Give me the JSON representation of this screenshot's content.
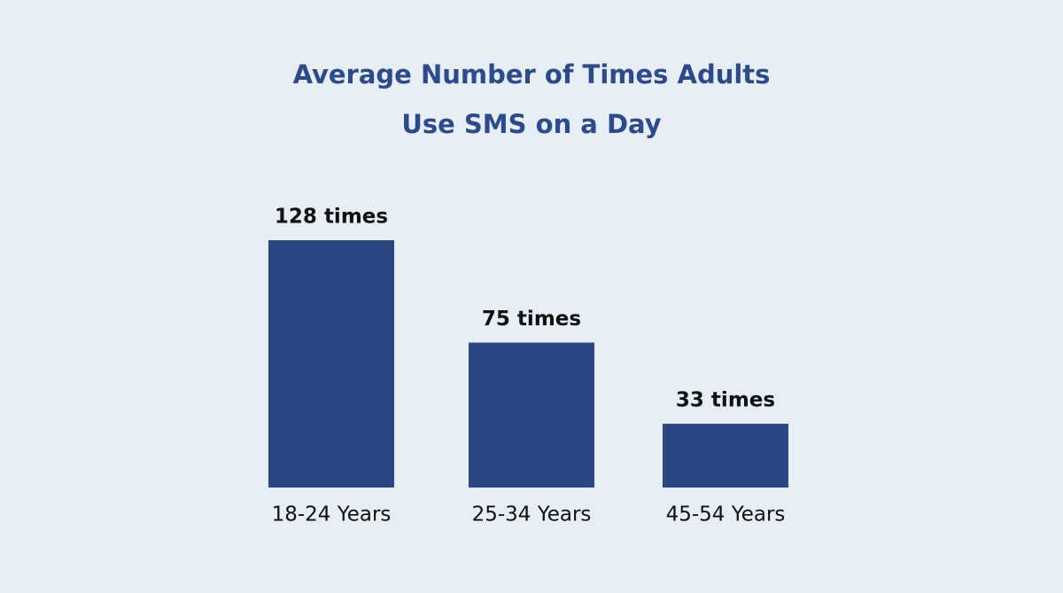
{
  "chart_data": {
    "type": "bar",
    "title": [
      "Average Number of Times Adults",
      "Use SMS on a Day"
    ],
    "categories": [
      "18-24 Years",
      "25-34 Years",
      "45-54 Years"
    ],
    "values": [
      128,
      75,
      33
    ],
    "value_labels": [
      "128 times",
      "75 times",
      "33 times"
    ],
    "color": "#2b4684"
  }
}
